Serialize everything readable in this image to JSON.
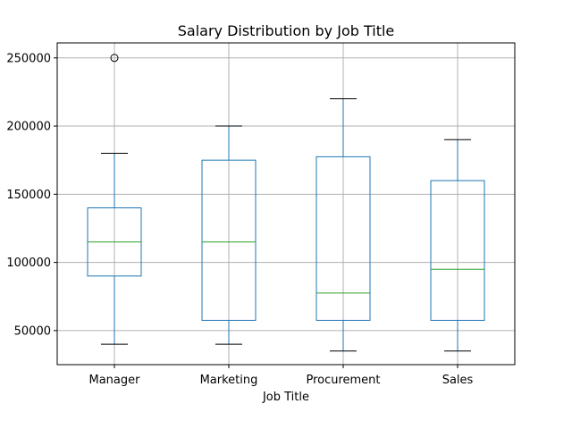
{
  "chart_data": {
    "type": "box",
    "title": "Salary Distribution by Job Title",
    "xlabel": "Job Title",
    "ylabel": "",
    "ylim": [
      25000,
      261000
    ],
    "yticks": [
      50000,
      100000,
      150000,
      200000,
      250000
    ],
    "ytick_labels": [
      "50000",
      "100000",
      "150000",
      "200000",
      "250000"
    ],
    "categories": [
      "Manager",
      "Marketing",
      "Procurement",
      "Sales"
    ],
    "boxes": [
      {
        "category": "Manager",
        "whisker_low": 40000,
        "q1": 90000,
        "median": 115000,
        "q3": 140000,
        "whisker_high": 180000,
        "outliers": [
          250000
        ]
      },
      {
        "category": "Marketing",
        "whisker_low": 40000,
        "q1": 57500,
        "median": 115000,
        "q3": 175000,
        "whisker_high": 200000,
        "outliers": []
      },
      {
        "category": "Procurement",
        "whisker_low": 35000,
        "q1": 57500,
        "median": 77500,
        "q3": 177500,
        "whisker_high": 220000,
        "outliers": []
      },
      {
        "category": "Sales",
        "whisker_low": 35000,
        "q1": 57500,
        "median": 95000,
        "q3": 160000,
        "whisker_high": 190000,
        "outliers": []
      }
    ],
    "grid": true,
    "colors": {
      "box": "#1f77b4",
      "median": "#2ca02c",
      "whisker": "#1f77b4",
      "cap": "#000000",
      "outlier": "#000000",
      "grid": "#b0b0b0",
      "axis": "#000000"
    }
  }
}
